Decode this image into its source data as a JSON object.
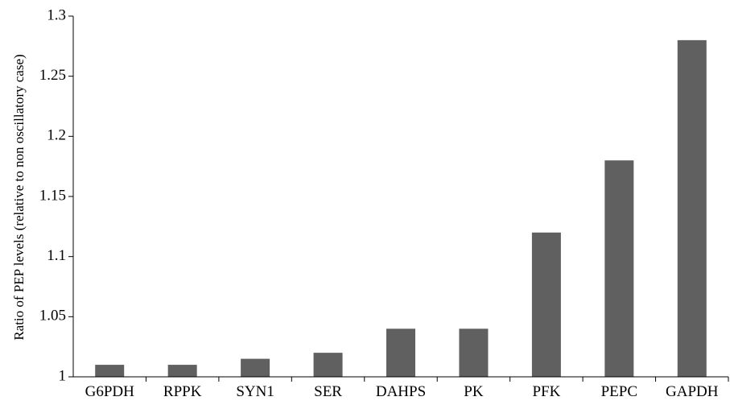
{
  "chart_data": {
    "type": "bar",
    "title": "",
    "xlabel": "",
    "ylabel": "Ratio of PEP levels (relative to non oscillatory case)",
    "categories": [
      "G6PDH",
      "RPPK",
      "SYN1",
      "SER",
      "DAHPS",
      "PK",
      "PFK",
      "PEPC",
      "GAPDH"
    ],
    "values": [
      1.01,
      1.01,
      1.015,
      1.02,
      1.04,
      1.04,
      1.12,
      1.18,
      1.28
    ],
    "ylim": [
      1,
      1.3
    ],
    "yticks": [
      "1",
      "1.05",
      "1.1",
      "1.15",
      "1.2",
      "1.25",
      "1.3"
    ],
    "grid": false,
    "legend": "none",
    "bar_color": "#606060"
  }
}
